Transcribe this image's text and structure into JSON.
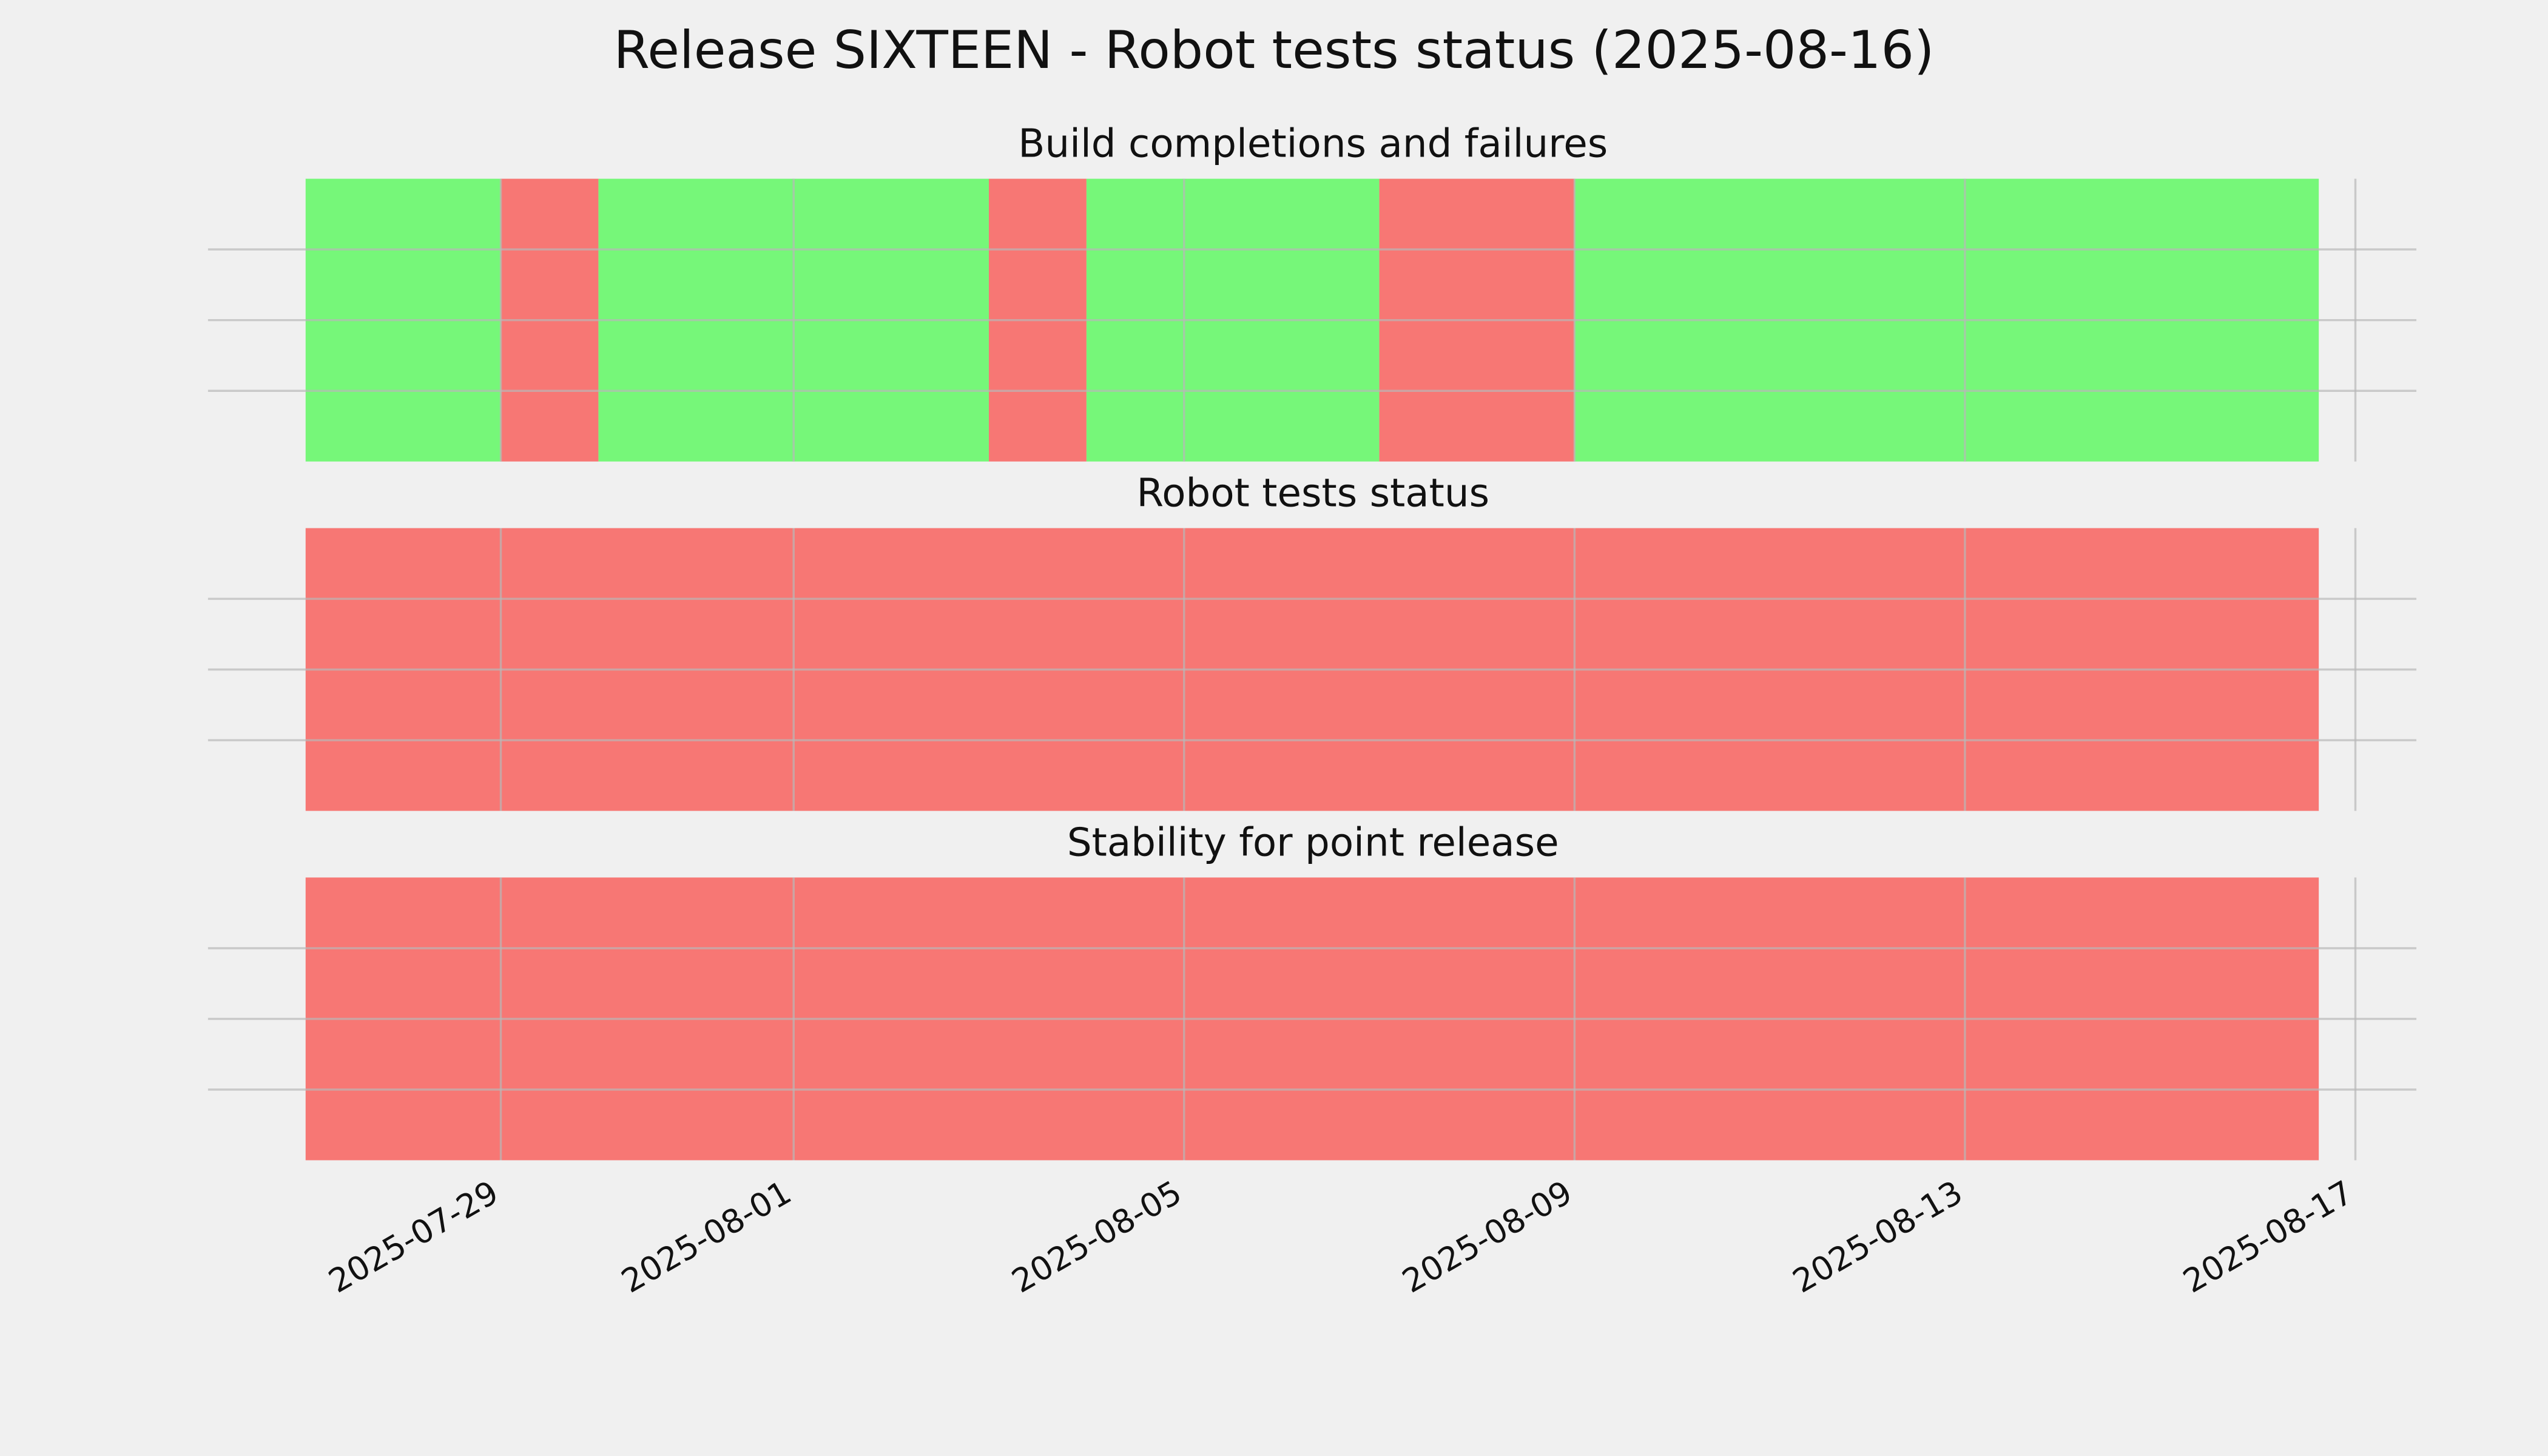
{
  "chart_data": {
    "type": "timeline",
    "title": "Release SIXTEEN - Robot tests status (2025-08-16)",
    "xlim": [
      "2025-07-26T00:00",
      "2025-08-17T15:00"
    ],
    "xticks": [
      "2025-07-29",
      "2025-08-01",
      "2025-08-05",
      "2025-08-09",
      "2025-08-13",
      "2025-08-17"
    ],
    "grid": true,
    "panels": [
      {
        "title": "Build completions and failures",
        "ylim": [
          0,
          1
        ],
        "yticks": [
          0.25,
          0.5,
          0.75
        ],
        "spans": [
          {
            "start": "2025-07-27",
            "end": "2025-07-29",
            "color": "#76f779"
          },
          {
            "start": "2025-07-29",
            "end": "2025-07-30",
            "color": "#f77774"
          },
          {
            "start": "2025-07-30",
            "end": "2025-08-03",
            "color": "#76f779"
          },
          {
            "start": "2025-08-03",
            "end": "2025-08-04",
            "color": "#f77774"
          },
          {
            "start": "2025-08-04",
            "end": "2025-08-07",
            "color": "#76f779"
          },
          {
            "start": "2025-08-07",
            "end": "2025-08-09",
            "color": "#f77774"
          },
          {
            "start": "2025-08-09",
            "end": "2025-08-16T15:00",
            "color": "#76f779"
          }
        ]
      },
      {
        "title": "Robot tests status",
        "ylim": [
          0,
          1
        ],
        "yticks": [
          0.25,
          0.5,
          0.75
        ],
        "spans": [
          {
            "start": "2025-07-27",
            "end": "2025-08-16T15:00",
            "color": "#f77774"
          }
        ]
      },
      {
        "title": "Stability for point release",
        "ylim": [
          0,
          1
        ],
        "yticks": [
          0.25,
          0.5,
          0.75
        ],
        "spans": [
          {
            "start": "2025-07-27",
            "end": "2025-08-16T15:00",
            "color": "#f77774"
          }
        ]
      }
    ]
  }
}
